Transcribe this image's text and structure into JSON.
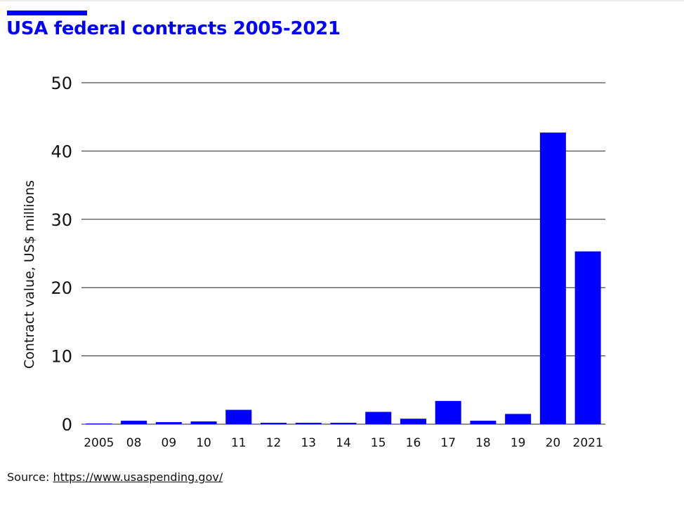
{
  "accent_color": "#0000ff",
  "title": "USA federal contracts 2005-2021",
  "source": {
    "label": "Source:",
    "link_text": "https://www.usaspending.gov/"
  },
  "chart_data": {
    "type": "bar",
    "title": "USA federal contracts 2005-2021",
    "xlabel": "",
    "ylabel": "Contract value, US$ millions",
    "categories": [
      "2005",
      "08",
      "09",
      "10",
      "11",
      "12",
      "13",
      "14",
      "15",
      "16",
      "17",
      "18",
      "19",
      "20",
      "2021"
    ],
    "values": [
      0.1,
      0.5,
      0.3,
      0.4,
      2.1,
      0.2,
      0.2,
      0.2,
      1.8,
      0.8,
      3.4,
      0.5,
      1.5,
      42.7,
      25.3
    ],
    "ylim": [
      0,
      50
    ],
    "yticks": [
      0,
      10,
      20,
      30,
      40,
      50
    ],
    "grid": true,
    "legend": "none",
    "bar_color": "#0000ff"
  }
}
